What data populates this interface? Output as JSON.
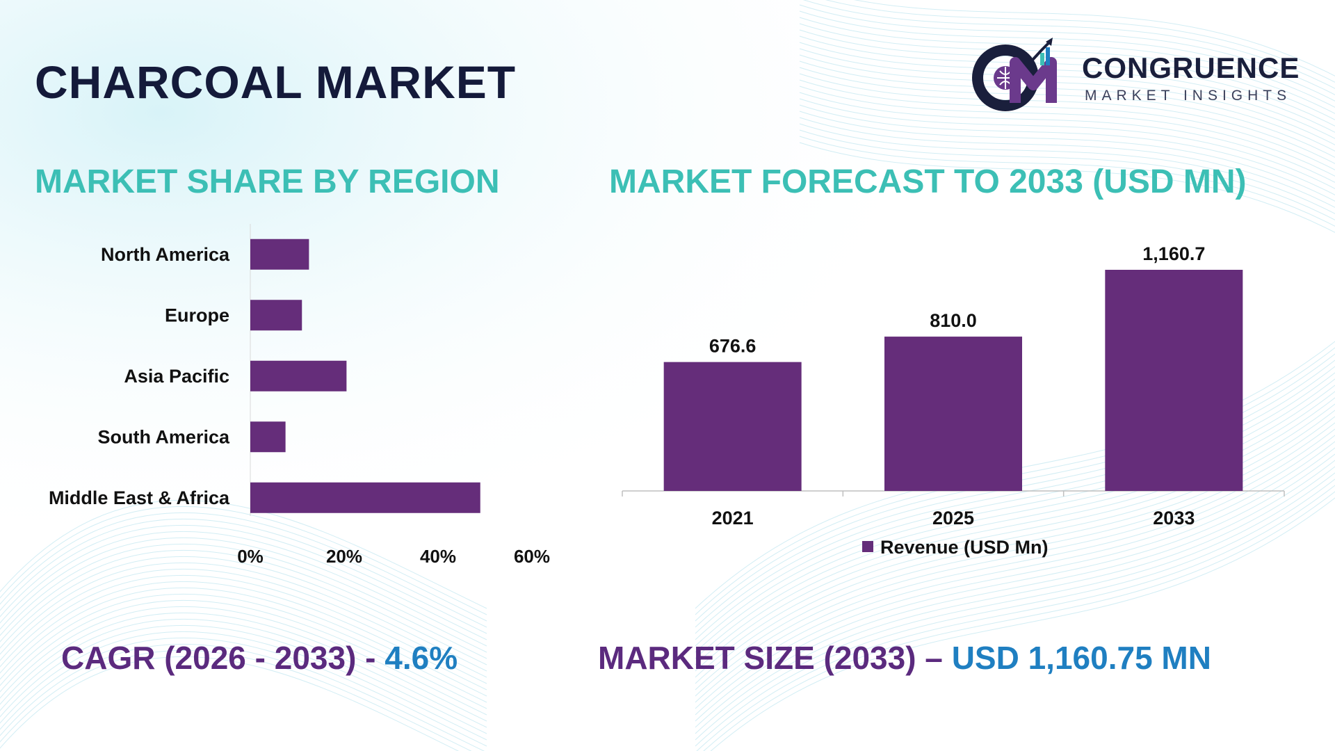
{
  "header": {
    "title": "CHARCOAL MARKET"
  },
  "logo": {
    "name": "CONGRUENCE",
    "tagline": "MARKET INSIGHTS",
    "monogram": "CM"
  },
  "colors": {
    "bar": "#652d7a",
    "title_dark": "#141a3a",
    "section_teal": "#3cbfb5",
    "stat_purple": "#5b2a7e",
    "stat_blue": "#1f7fc1"
  },
  "sections": {
    "region_title": "MARKET SHARE BY REGION",
    "forecast_title": "MARKET FORECAST TO 2033 (USD MN)"
  },
  "chart_data": [
    {
      "type": "bar",
      "orientation": "horizontal",
      "title": "MARKET SHARE BY REGION",
      "categories": [
        "North America",
        "Europe",
        "Asia Pacific",
        "South America",
        "Middle East & Africa"
      ],
      "values": [
        12.5,
        11,
        20.5,
        7.5,
        49
      ],
      "xlim": [
        0,
        60
      ],
      "x_ticks": [
        "0%",
        "20%",
        "40%",
        "60%"
      ],
      "grid": false
    },
    {
      "type": "bar",
      "title": "MARKET FORECAST TO 2033 (USD MN)",
      "categories": [
        "2021",
        "2025",
        "2033"
      ],
      "series": [
        {
          "name": "Revenue (USD Mn)",
          "values": [
            676.6,
            810.0,
            1160.7
          ]
        }
      ],
      "data_labels": [
        "676.6",
        "810.0",
        "1,160.7"
      ],
      "legend": "bottom",
      "grid": false
    }
  ],
  "stats": {
    "cagr_label": "CAGR (2026 - 2033) -",
    "cagr_value": "4.6%",
    "size_label": "MARKET SIZE (2033) –",
    "size_value": "USD 1,160.75 MN"
  }
}
